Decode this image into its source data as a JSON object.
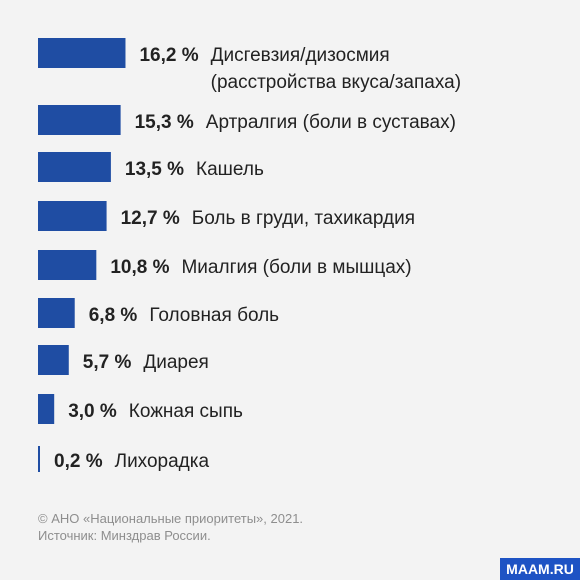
{
  "chart_data": {
    "type": "bar",
    "orientation": "horizontal",
    "unit": "%",
    "items": [
      {
        "value": 16.2,
        "value_text": "16,2 %",
        "label": [
          "Дисгевзия/дизосмия",
          "(расстройства вкуса/запаха)"
        ]
      },
      {
        "value": 15.3,
        "value_text": "15,3 %",
        "label": [
          "Артралгия (боли в суставах)"
        ]
      },
      {
        "value": 13.5,
        "value_text": "13,5 %",
        "label": [
          "Кашель"
        ]
      },
      {
        "value": 12.7,
        "value_text": "12,7 %",
        "label": [
          "Боль в груди, тахикардия"
        ]
      },
      {
        "value": 10.8,
        "value_text": "10,8 %",
        "label": [
          "Миалгия (боли в мышцах)"
        ]
      },
      {
        "value": 6.8,
        "value_text": "6,8 %",
        "label": [
          "Головная боль"
        ]
      },
      {
        "value": 5.7,
        "value_text": "5,7 %",
        "label": [
          "Диарея"
        ]
      },
      {
        "value": 3.0,
        "value_text": "3,0 %",
        "label": [
          "Кожная сыпь"
        ]
      },
      {
        "value": 0.2,
        "value_text": "0,2 %",
        "label": [
          "Лихорадка"
        ]
      }
    ],
    "colors": {
      "bar": "#1f4da3"
    }
  },
  "footer": {
    "line1": "© АНО «Национальные приоритеты», 2021.",
    "line2": "Источник: Минздрав России."
  },
  "badge": "MAAM.RU"
}
